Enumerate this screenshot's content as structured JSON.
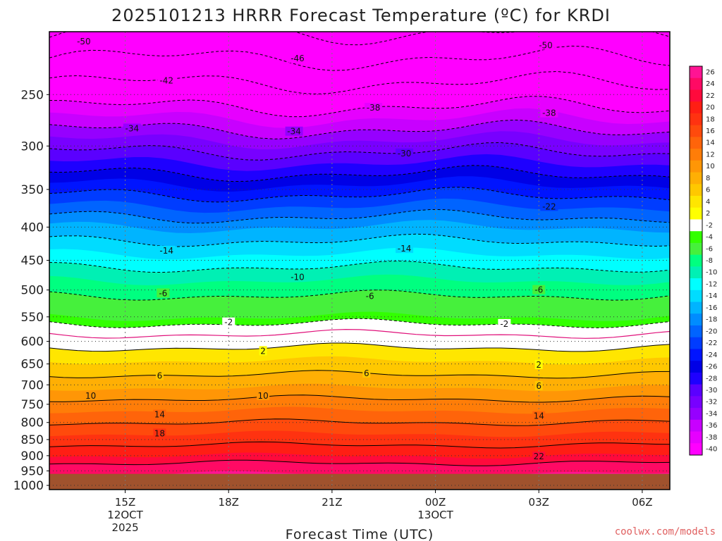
{
  "chart_data": {
    "type": "heatmap",
    "title": "2025101213 HRRR Forecast Temperature (ºC) for KRDI",
    "xlabel": "Forecast Time (UTC)",
    "ylabel": "",
    "credit": "coolwx.com/models",
    "ylim": [
      1015,
      200
    ],
    "y_ticks": [
      250,
      300,
      350,
      400,
      450,
      500,
      550,
      600,
      650,
      700,
      750,
      800,
      850,
      900,
      950,
      1000
    ],
    "x_ticks": [
      {
        "hour": 2,
        "lines": [
          "15Z",
          "12OCT",
          "2025"
        ]
      },
      {
        "hour": 5,
        "lines": [
          "18Z"
        ]
      },
      {
        "hour": 8,
        "lines": [
          "21Z"
        ]
      },
      {
        "hour": 11,
        "lines": [
          "00Z",
          "13OCT"
        ]
      },
      {
        "hour": 14,
        "lines": [
          "03Z"
        ]
      },
      {
        "hour": 17,
        "lines": [
          "06Z"
        ]
      }
    ],
    "xlim": [
      -0.2,
      17.8
    ],
    "ground_pressure": 960,
    "colorbar": {
      "labels": [
        26,
        24,
        22,
        20,
        18,
        16,
        14,
        12,
        10,
        8,
        6,
        4,
        2,
        -2,
        -4,
        -6,
        -8,
        -10,
        -12,
        -14,
        -16,
        -18,
        -20,
        -22,
        -24,
        -26,
        -28,
        -30,
        -32,
        -34,
        -36,
        -38,
        -40
      ],
      "colors": [
        "#ff1493",
        "#ff0a64",
        "#ff0a3c",
        "#ff1e14",
        "#ff3210",
        "#ff4a0c",
        "#ff640a",
        "#ff7d08",
        "#ff9606",
        "#ffaf04",
        "#ffc800",
        "#ffe600",
        "#ffff00",
        "#ffffff",
        "#32ff00",
        "#46f03c",
        "#00ff80",
        "#00f0b4",
        "#00ffff",
        "#00dcff",
        "#00b4ff",
        "#008cff",
        "#0064ff",
        "#003cff",
        "#0014ff",
        "#0000e6",
        "#1e00ff",
        "#5a00ff",
        "#7800ff",
        "#9600ff",
        "#c800ff",
        "#e600ff",
        "#ff00ff"
      ]
    },
    "temperature_profile": [
      {
        "p": 960,
        "t": 24
      },
      {
        "p": 930,
        "t": 22.5
      },
      {
        "p": 900,
        "t": 20
      },
      {
        "p": 850,
        "t": 17
      },
      {
        "p": 800,
        "t": 14
      },
      {
        "p": 750,
        "t": 11
      },
      {
        "p": 700,
        "t": 7.5
      },
      {
        "p": 650,
        "t": 4.5
      },
      {
        "p": 620,
        "t": 2.5
      },
      {
        "p": 600,
        "t": 1
      },
      {
        "p": 570,
        "t": -1
      },
      {
        "p": 550,
        "t": -4
      },
      {
        "p": 500,
        "t": -6.5
      },
      {
        "p": 450,
        "t": -11
      },
      {
        "p": 400,
        "t": -16
      },
      {
        "p": 350,
        "t": -23
      },
      {
        "p": 300,
        "t": -31
      },
      {
        "p": 250,
        "t": -40
      },
      {
        "p": 200,
        "t": -50
      }
    ],
    "contour_labels": [
      {
        "value": "-50",
        "hour": 0.8,
        "p": 207
      },
      {
        "value": "-50",
        "hour": 14.2,
        "p": 210
      },
      {
        "value": "-46",
        "hour": 7.0,
        "p": 220
      },
      {
        "value": "-42",
        "hour": 3.2,
        "p": 238
      },
      {
        "value": "-38",
        "hour": 9.2,
        "p": 262
      },
      {
        "value": "-38",
        "hour": 14.3,
        "p": 267
      },
      {
        "value": "-34",
        "hour": 2.2,
        "p": 282
      },
      {
        "value": "-34",
        "hour": 6.9,
        "p": 285
      },
      {
        "value": "-30",
        "hour": 10.1,
        "p": 308
      },
      {
        "value": "-22",
        "hour": 14.3,
        "p": 372
      },
      {
        "value": "-14",
        "hour": 3.2,
        "p": 435
      },
      {
        "value": "-14",
        "hour": 10.1,
        "p": 432
      },
      {
        "value": "-10",
        "hour": 7.0,
        "p": 478
      },
      {
        "value": "-6",
        "hour": 3.1,
        "p": 506
      },
      {
        "value": "-6",
        "hour": 9.1,
        "p": 511
      },
      {
        "value": "-6",
        "hour": 14.0,
        "p": 500
      },
      {
        "value": "-2",
        "hour": 5.0,
        "p": 561
      },
      {
        "value": "-2",
        "hour": 13.0,
        "p": 564
      },
      {
        "value": "2",
        "hour": 6.0,
        "p": 621
      },
      {
        "value": "2",
        "hour": 14.0,
        "p": 652
      },
      {
        "value": "6",
        "hour": 3.0,
        "p": 678
      },
      {
        "value": "6",
        "hour": 9.0,
        "p": 672
      },
      {
        "value": "6",
        "hour": 14.0,
        "p": 703
      },
      {
        "value": "10",
        "hour": 1.0,
        "p": 728
      },
      {
        "value": "10",
        "hour": 6.0,
        "p": 728
      },
      {
        "value": "14",
        "hour": 3.0,
        "p": 778
      },
      {
        "value": "14",
        "hour": 14.0,
        "p": 782
      },
      {
        "value": "18",
        "hour": 3.0,
        "p": 832
      },
      {
        "value": "22",
        "hour": 14.0,
        "p": 903
      }
    ]
  }
}
